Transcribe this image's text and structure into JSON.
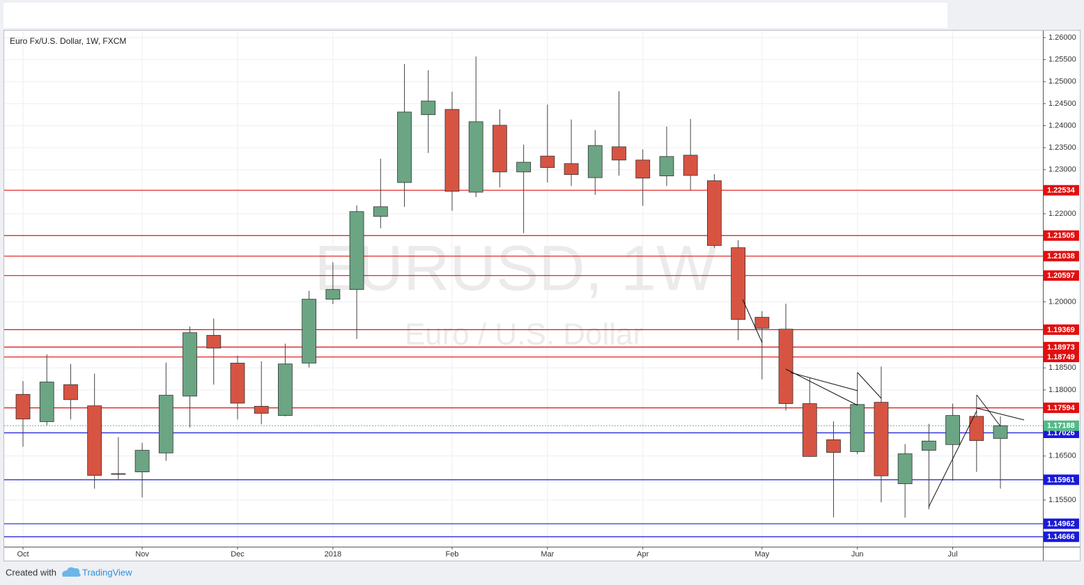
{
  "chart_data": {
    "type": "candlestick",
    "title": "Euro Fx/U.S. Dollar, 1W, FXCM",
    "watermark": "EURUSD, 1W",
    "watermark_subtitle": "Euro / U.S. Dollar",
    "footer": {
      "prefix": "Created with",
      "brand": "TradingView"
    },
    "categories": [
      "Oct",
      null,
      null,
      null,
      null,
      "Nov",
      null,
      null,
      null,
      "Dec",
      null,
      null,
      null,
      "2018",
      null,
      null,
      null,
      null,
      "Feb",
      null,
      null,
      null,
      "Mar",
      null,
      null,
      null,
      "Apr",
      null,
      null,
      null,
      null,
      "May",
      null,
      null,
      null,
      "Jun",
      null,
      null,
      null,
      "Jul",
      null,
      null
    ],
    "open": [
      1.179,
      1.1728,
      1.1812,
      1.1764,
      1.161,
      1.1614,
      1.1657,
      1.1786,
      1.1924,
      1.1861,
      1.1763,
      1.1742,
      1.1861,
      1.2006,
      1.2028,
      1.2194,
      1.2271,
      1.2425,
      1.2437,
      1.2249,
      1.2401,
      1.2295,
      1.2331,
      1.2314,
      1.2282,
      1.2352,
      1.2322,
      1.2286,
      1.2333,
      1.2275,
      1.2123,
      1.1965,
      1.1938,
      1.1769,
      1.1687,
      1.166,
      1.1772,
      1.1587,
      1.1663,
      1.1676,
      1.174,
      1.169
    ],
    "high": [
      1.182,
      1.1881,
      1.1859,
      1.1837,
      1.1693,
      1.168,
      1.1862,
      1.1944,
      1.1962,
      1.1878,
      1.1865,
      1.1905,
      1.2025,
      1.209,
      1.2219,
      1.2325,
      1.254,
      1.2526,
      1.2477,
      1.2557,
      1.2437,
      1.2357,
      1.2448,
      1.2414,
      1.239,
      1.2478,
      1.2346,
      1.2398,
      1.2415,
      1.229,
      1.214,
      1.1979,
      1.1996,
      1.1827,
      1.1729,
      1.184,
      1.1853,
      1.1677,
      1.1723,
      1.1769,
      1.1788,
      1.174
    ],
    "low": [
      1.1671,
      1.172,
      1.1733,
      1.1576,
      1.1595,
      1.1556,
      1.1639,
      1.1715,
      1.1812,
      1.1733,
      1.1722,
      1.174,
      1.1851,
      1.1995,
      1.1916,
      1.2167,
      1.2216,
      1.2338,
      1.2207,
      1.2238,
      1.226,
      1.2156,
      1.2271,
      1.2263,
      1.2243,
      1.2287,
      1.2218,
      1.2263,
      1.2254,
      1.2123,
      1.1913,
      1.1824,
      1.1753,
      1.1648,
      1.1511,
      1.1654,
      1.1545,
      1.151,
      1.1529,
      1.1594,
      1.1614,
      1.1576
    ],
    "close": [
      1.1734,
      1.1818,
      1.1778,
      1.1606,
      1.1609,
      1.1663,
      1.1788,
      1.193,
      1.1895,
      1.177,
      1.1747,
      1.1859,
      1.2006,
      1.2028,
      1.2205,
      1.2216,
      1.2431,
      1.2456,
      1.2251,
      1.2409,
      1.2295,
      1.2317,
      1.2305,
      1.2289,
      1.2355,
      1.2322,
      1.2281,
      1.233,
      1.2287,
      1.2128,
      1.196,
      1.194,
      1.1769,
      1.1649,
      1.1658,
      1.1767,
      1.1605,
      1.1655,
      1.1684,
      1.1742,
      1.1685,
      1.17188
    ],
    "up_color": "#6ba583",
    "down_color": "#d75442",
    "ylim": [
      1.14441,
      1.26158
    ],
    "yticks": [
      {
        "value": 1.26,
        "label": "1.26000"
      },
      {
        "value": 1.255,
        "label": "1.25500"
      },
      {
        "value": 1.25,
        "label": "1.25000"
      },
      {
        "value": 1.245,
        "label": "1.24500"
      },
      {
        "value": 1.24,
        "label": "1.24000"
      },
      {
        "value": 1.235,
        "label": "1.23500"
      },
      {
        "value": 1.23,
        "label": "1.23000"
      },
      {
        "value": 1.22,
        "label": "1.22000"
      },
      {
        "value": 1.2,
        "label": "1.20000"
      },
      {
        "value": 1.185,
        "label": "1.18500"
      },
      {
        "value": 1.18,
        "label": "1.18000"
      },
      {
        "value": 1.165,
        "label": "1.16500"
      },
      {
        "value": 1.155,
        "label": "1.15500"
      }
    ],
    "levels": [
      {
        "value": 1.22534,
        "color": "#e01010"
      },
      {
        "value": 1.21505,
        "color": "#e01010"
      },
      {
        "value": 1.21038,
        "color": "#e01010"
      },
      {
        "value": 1.20597,
        "color": "#e01010"
      },
      {
        "value": 1.19369,
        "color": "#e01010"
      },
      {
        "value": 1.18973,
        "color": "#e01010"
      },
      {
        "value": 1.18749,
        "color": "#e01010"
      },
      {
        "value": 1.17594,
        "color": "#e01010"
      },
      {
        "value": 1.17026,
        "color": "#1a1ad6"
      },
      {
        "value": 1.15961,
        "color": "#1a1ad6"
      },
      {
        "value": 1.14962,
        "color": "#1a1ad6"
      },
      {
        "value": 1.14666,
        "color": "#1a1ad6"
      }
    ],
    "last_price": 1.17188,
    "last_price_color": "#53b987",
    "grid": true
  }
}
